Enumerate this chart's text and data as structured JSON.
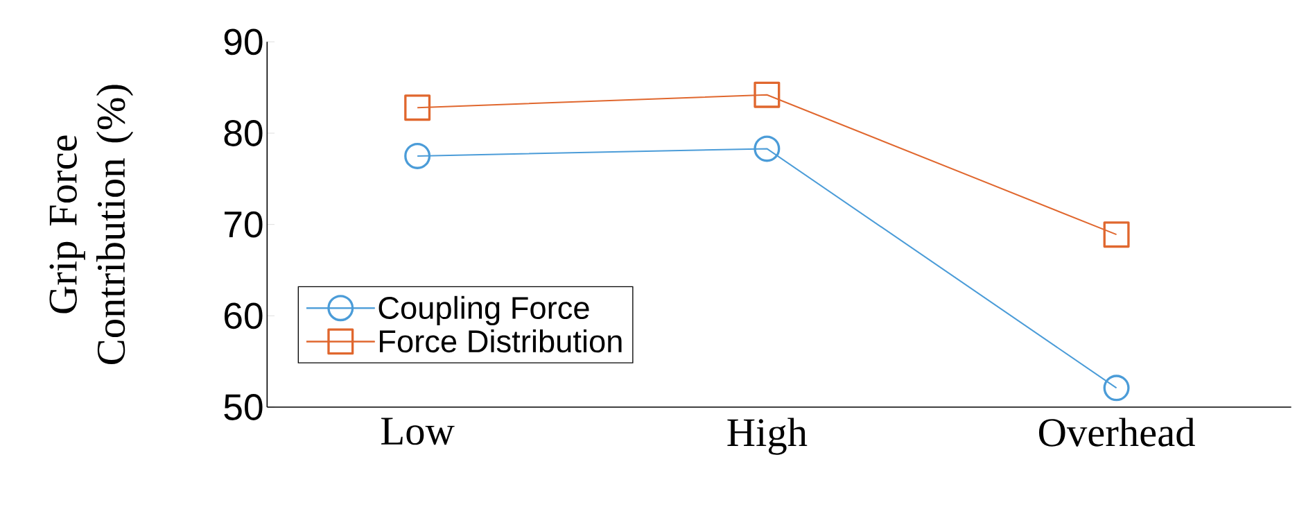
{
  "chart_data": {
    "type": "line",
    "ylabel": "Grip Force Contribution (%)",
    "categories": [
      "Low",
      "High",
      "Overhead"
    ],
    "series": [
      {
        "name": "Coupling Force",
        "color": "#4b9cd8",
        "marker": "circle",
        "values": [
          77.5,
          78.3,
          52.1
        ]
      },
      {
        "name": "Force Distribution",
        "color": "#e0672e",
        "marker": "square",
        "values": [
          82.8,
          84.2,
          68.9
        ]
      }
    ],
    "ylim": [
      50,
      90
    ],
    "yticks": [
      50,
      60,
      70,
      80,
      90
    ],
    "grid": false,
    "legend": "bottom left"
  }
}
